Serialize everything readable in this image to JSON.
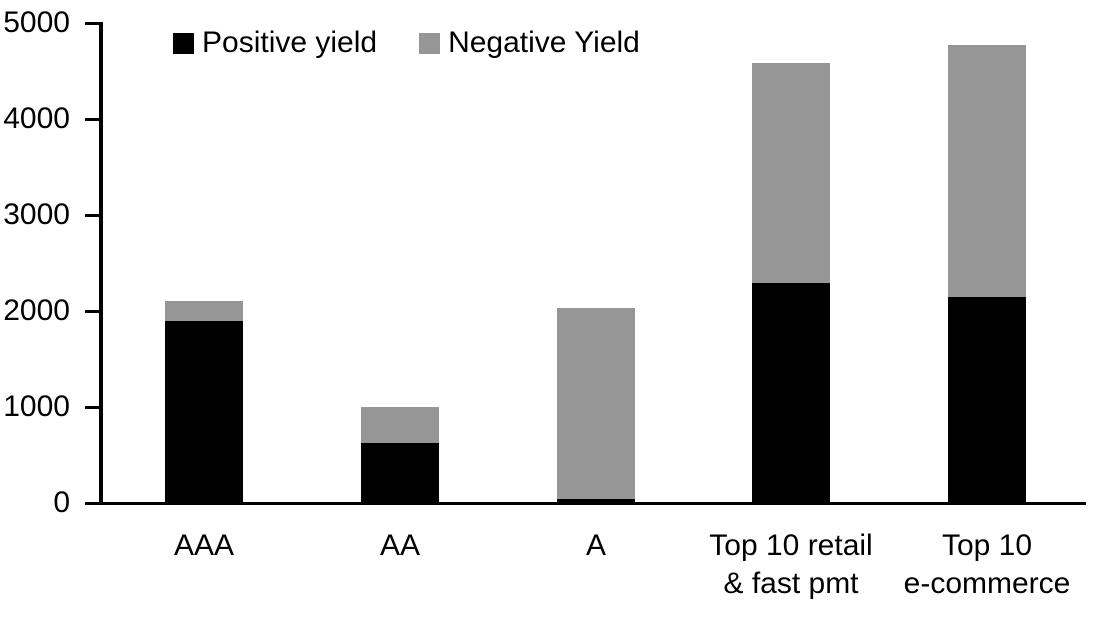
{
  "chart_data": {
    "type": "bar",
    "stacked": true,
    "title": "",
    "xlabel": "",
    "ylabel": "",
    "categories": [
      "AAA",
      "AA",
      "A",
      "Top 10 retail\n& fast pmt",
      "Top 10\ne-commerce"
    ],
    "series": [
      {
        "name": "Positive yield",
        "color": "#000000",
        "values": [
          1900,
          630,
          40,
          2290,
          2150
        ]
      },
      {
        "name": "Negative Yield",
        "color": "#969696",
        "values": [
          210,
          380,
          1990,
          2290,
          2620
        ]
      }
    ],
    "ylim": [
      0,
      5000
    ],
    "yticks": [
      0,
      1000,
      2000,
      3000,
      4000,
      5000
    ],
    "grid": false,
    "legend_position": "top-inside",
    "axis_color": "#000000",
    "background_color": "#ffffff"
  }
}
